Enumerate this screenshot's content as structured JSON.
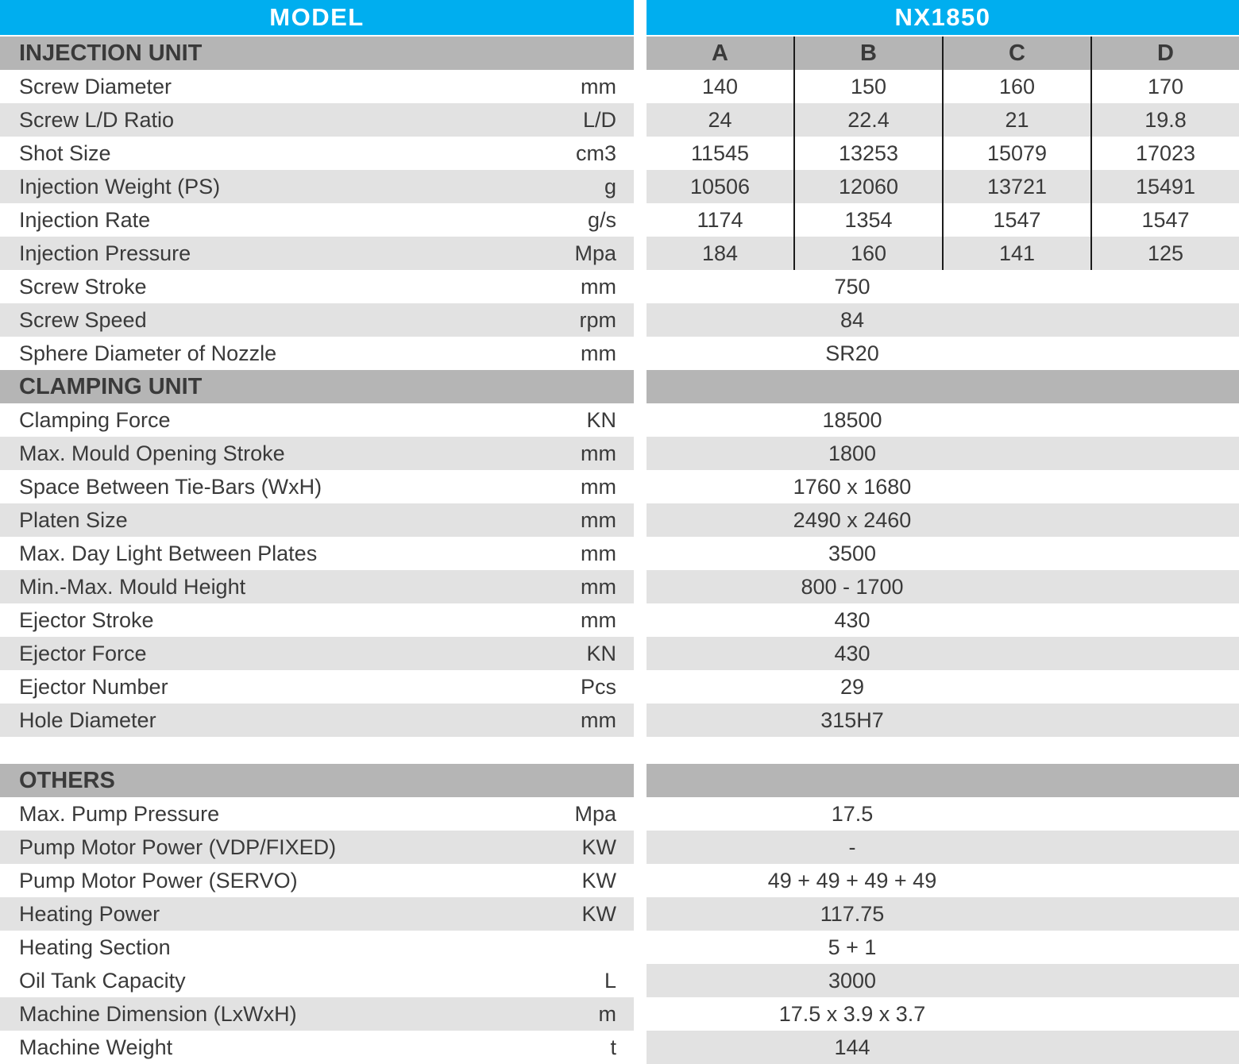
{
  "header": {
    "model_label": "MODEL",
    "variant_label": "NX1850"
  },
  "columns": [
    "A",
    "B",
    "C",
    "D"
  ],
  "sections": [
    {
      "title": "INJECTION UNIT",
      "rows": [
        {
          "label": "Screw Diameter",
          "unit": "mm",
          "values": [
            "140",
            "150",
            "160",
            "170"
          ]
        },
        {
          "label": "Screw L/D Ratio",
          "unit": "L/D",
          "values": [
            "24",
            "22.4",
            "21",
            "19.8"
          ]
        },
        {
          "label": "Shot Size",
          "unit": "cm3",
          "values": [
            "11545",
            "13253",
            "15079",
            "17023"
          ]
        },
        {
          "label": "Injection Weight (PS)",
          "unit": "g",
          "values": [
            "10506",
            "12060",
            "13721",
            "15491"
          ]
        },
        {
          "label": "Injection Rate",
          "unit": "g/s",
          "values": [
            "1174",
            "1354",
            "1547",
            "1547"
          ]
        },
        {
          "label": "Injection Pressure",
          "unit": "Mpa",
          "values": [
            "184",
            "160",
            "141",
            "125"
          ]
        },
        {
          "label": "Screw Stroke",
          "unit": "mm",
          "value": "750"
        },
        {
          "label": "Screw Speed",
          "unit": "rpm",
          "value": "84"
        },
        {
          "label": "Sphere Diameter of Nozzle",
          "unit": "mm",
          "value": "SR20"
        }
      ]
    },
    {
      "title": "CLAMPING UNIT",
      "rows": [
        {
          "label": "Clamping Force",
          "unit": "KN",
          "value": "18500"
        },
        {
          "label": "Max. Mould Opening Stroke",
          "unit": "mm",
          "value": "1800"
        },
        {
          "label": "Space Between Tie-Bars (WxH)",
          "unit": "mm",
          "value": "1760 x 1680"
        },
        {
          "label": "Platen Size",
          "unit": "mm",
          "value": "2490 x 2460"
        },
        {
          "label": "Max. Day Light Between Plates",
          "unit": "mm",
          "value": "3500"
        },
        {
          "label": "Min.-Max. Mould Height",
          "unit": "mm",
          "value": "800 - 1700"
        },
        {
          "label": "Ejector Stroke",
          "unit": "mm",
          "value": "430"
        },
        {
          "label": "Ejector Force",
          "unit": "KN",
          "value": "430"
        },
        {
          "label": "Ejector Number",
          "unit": "Pcs",
          "value": "29"
        },
        {
          "label": "Hole Diameter",
          "unit": "mm",
          "value": "315H7"
        }
      ]
    },
    {
      "title": "OTHERS",
      "rows": [
        {
          "label": "Max. Pump Pressure",
          "unit": "Mpa",
          "value": "17.5"
        },
        {
          "label": "Pump Motor Power (VDP/FIXED)",
          "unit": "KW",
          "value": "-"
        },
        {
          "label": "Pump Motor Power (SERVO)",
          "unit": "KW",
          "value": "49 + 49 + 49 + 49"
        },
        {
          "label": "Heating Power",
          "unit": "KW",
          "value": "117.75"
        },
        {
          "label": "Heating Section",
          "unit": "",
          "value": "5 + 1"
        },
        {
          "label": "Oil Tank Capacity",
          "unit": "L",
          "value": "3000"
        },
        {
          "label": "Machine Dimension (LxWxH)",
          "unit": "m",
          "value": "17.5 x 3.9 x 3.7"
        },
        {
          "label": "Machine Weight",
          "unit": "t",
          "value": "144"
        }
      ]
    }
  ],
  "colors": {
    "accent": "#00AEEF",
    "section_band": "#B5B5B5",
    "row_stripe": "#E2E2E2",
    "divider": "#1B1B1B",
    "header_text": "#FFFFFF",
    "body_text": "#3A3A3A"
  }
}
